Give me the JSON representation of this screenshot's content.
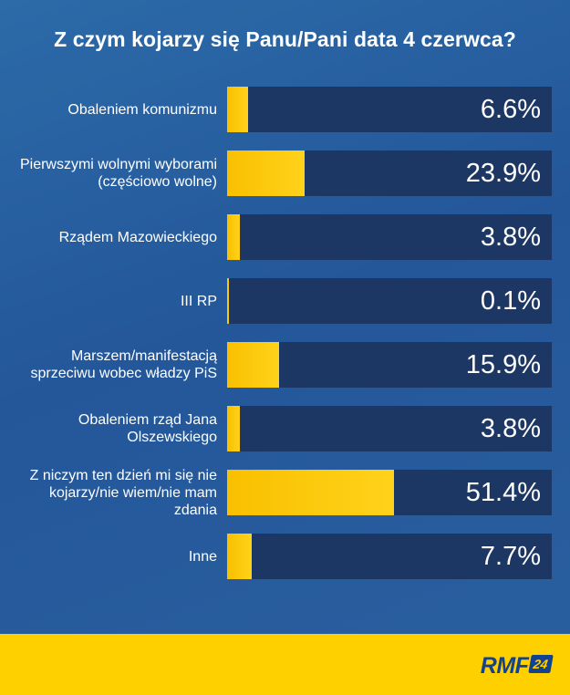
{
  "chart_data": {
    "type": "bar",
    "orientation": "horizontal",
    "title": "Z czym kojarzy się Panu/Pani data 4 czerwca?",
    "categories": [
      "Obaleniem komunizmu",
      "Pierwszymi wolnymi wyborami (częściowo wolne)",
      "Rządem Mazowieckiego",
      "III RP",
      "Marszem/manifestacją sprzeciwu wobec władzy PiS",
      "Obaleniem rząd Jana Olszewskiego",
      "Z niczym ten dzień mi się nie kojarzy/nie wiem/nie mam zdania",
      "Inne"
    ],
    "values": [
      6.6,
      23.9,
      3.8,
      0.1,
      15.9,
      3.8,
      51.4,
      7.7
    ],
    "value_labels": [
      "6.6%",
      "23.9%",
      "3.8%",
      "0.1%",
      "15.9%",
      "3.8%",
      "51.4%",
      "7.7%"
    ],
    "xlim": [
      0,
      100
    ],
    "grid": false,
    "colors": {
      "background": "#2a62a2",
      "track": "#1d3765",
      "bar": "#ffc600",
      "text": "#ffffff"
    }
  },
  "footer": {
    "logo_text": "RMF",
    "logo_badge": "24",
    "background": "#ffd000"
  }
}
